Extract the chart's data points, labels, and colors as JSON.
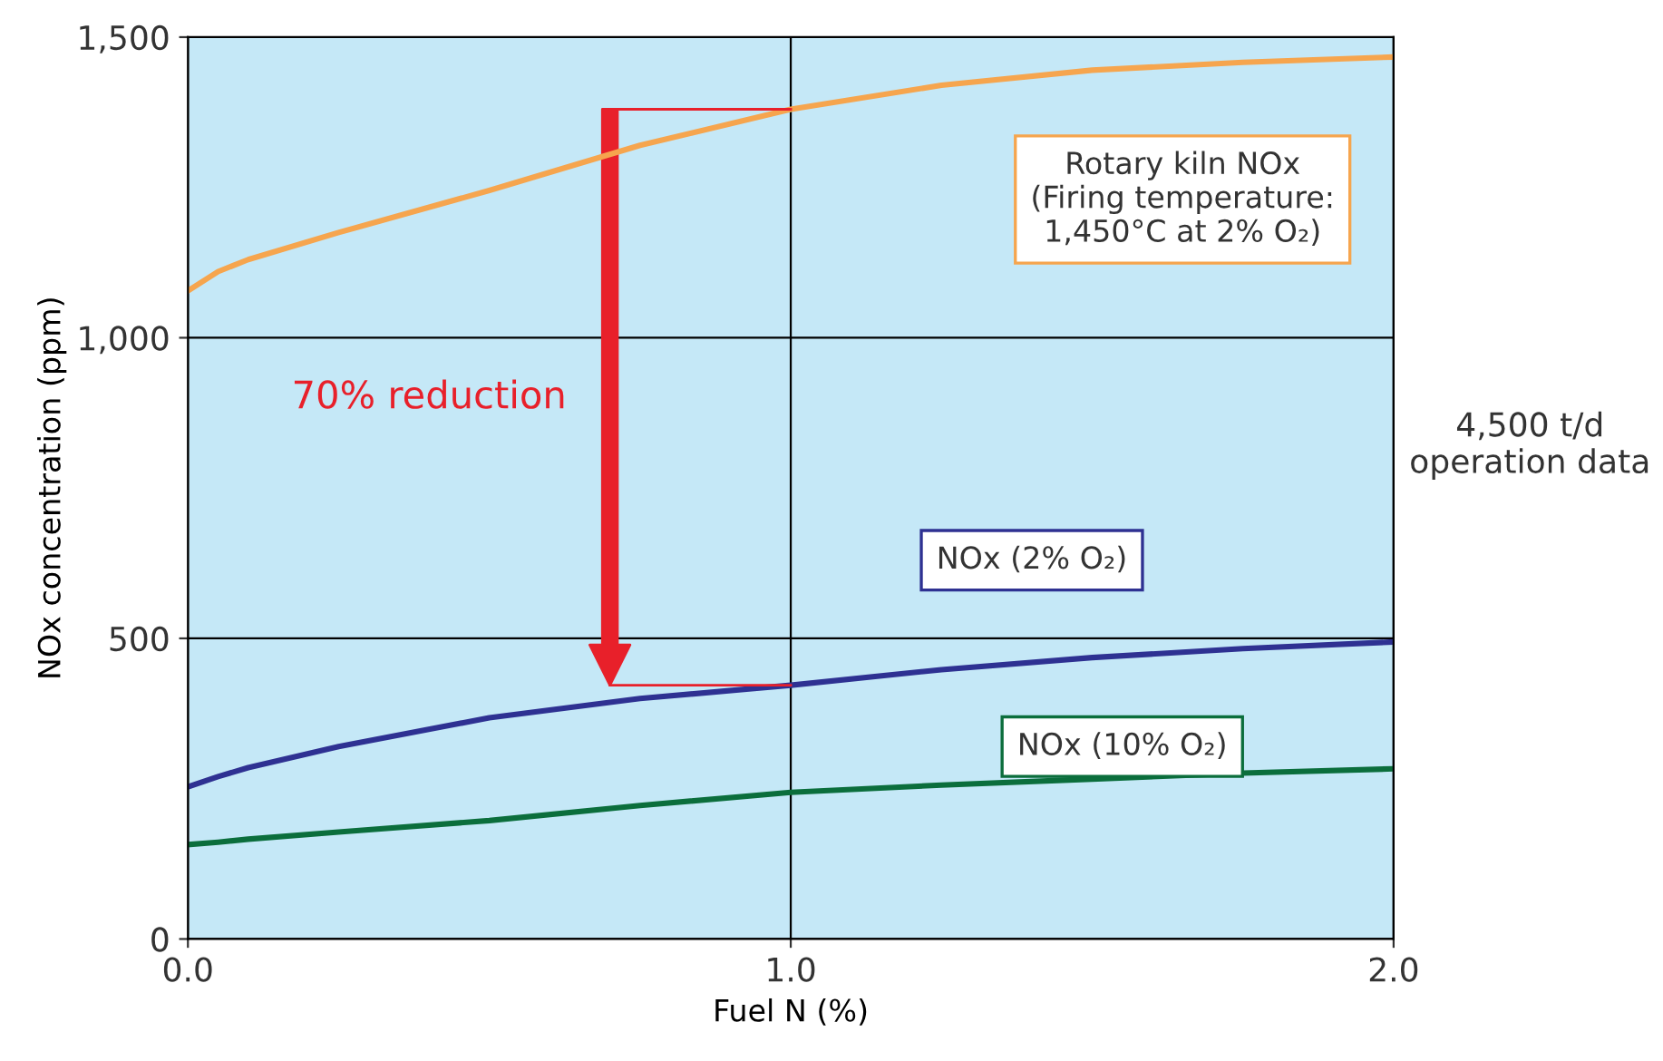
{
  "chart_data": {
    "type": "line",
    "xlabel": "Fuel N (%)",
    "ylabel": "NOx concentration (ppm)",
    "x": [
      0.0,
      0.05,
      0.1,
      0.25,
      0.5,
      0.75,
      1.0,
      1.25,
      1.5,
      1.75,
      2.0
    ],
    "series": [
      {
        "name": "Rotary kiln NOx\n(Firing temperature:\n1,450°C at 2% O₂)",
        "color": "#f6a54e",
        "values": [
          1078,
          1110,
          1130,
          1175,
          1245,
          1320,
          1380,
          1420,
          1445,
          1458,
          1467
        ]
      },
      {
        "name": "NOx (2% O₂)",
        "color": "#2e3192",
        "values": [
          253,
          270,
          285,
          320,
          368,
          400,
          422,
          448,
          468,
          483,
          494
        ]
      },
      {
        "name": "NOx (10% O₂)",
        "color": "#0b6e3c",
        "values": [
          157,
          161,
          166,
          178,
          197,
          222,
          244,
          256,
          266,
          276,
          283
        ]
      }
    ],
    "xlim": [
      0,
      2
    ],
    "xticks": [
      {
        "value": 0,
        "label": "0.0"
      },
      {
        "value": 1,
        "label": "1.0"
      },
      {
        "value": 2,
        "label": "2.0"
      }
    ],
    "ylim": [
      0,
      1500
    ],
    "yticks": [
      0,
      500,
      {
        "value": 1000,
        "label": "1,000"
      },
      {
        "value": 1500,
        "label": "1,500"
      }
    ],
    "grid": true,
    "legend": false,
    "annotations": [
      "70% reduction",
      "4,500 t/d\noperation data"
    ]
  }
}
